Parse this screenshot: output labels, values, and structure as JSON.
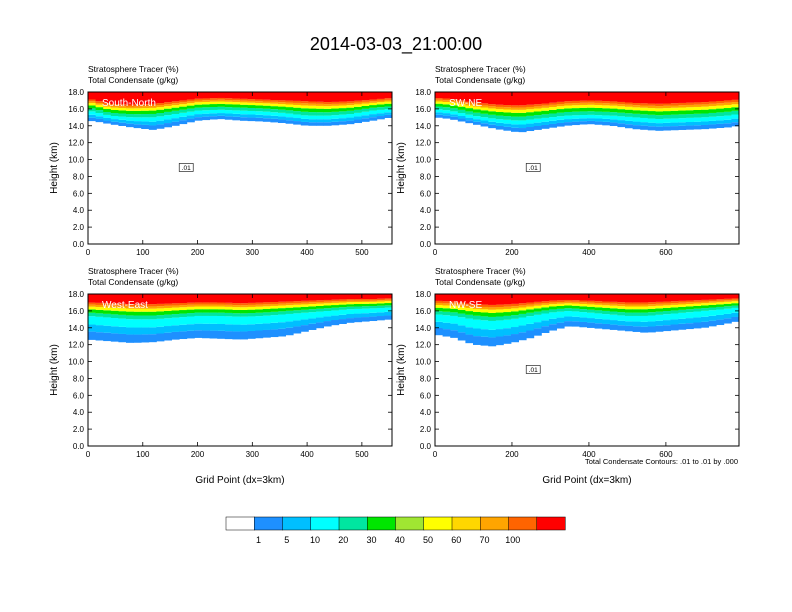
{
  "figure": {
    "title": "2014-03-03_21:00:00",
    "colorbar": {
      "labels": [
        "1",
        "5",
        "10",
        "20",
        "30",
        "40",
        "50",
        "60",
        "70",
        "100"
      ],
      "colors": [
        "#ffffff",
        "#1e90ff",
        "#00bfff",
        "#00ffff",
        "#00e6a0",
        "#00e600",
        "#a0e632",
        "#ffff00",
        "#ffd700",
        "#ffa500",
        "#ff6400",
        "#ff0000"
      ]
    },
    "contour_note": "Total Condensate Contours: .01 to .01 by .000",
    "ticks": {
      "y": [
        "0.0",
        "2.0",
        "4.0",
        "6.0",
        "8.0",
        "10.0",
        "12.0",
        "14.0",
        "16.0",
        "18.0"
      ]
    },
    "subtitle1": "Stratosphere Tracer   (%)",
    "subtitle2": "Total Condensate   (g/kg)"
  },
  "chart_data": [
    {
      "type": "heatmap",
      "panel": "South-North",
      "title": "Stratosphere Tracer (%) / Total Condensate (g/kg)",
      "ylabel": "Height (km)",
      "xlabel": "",
      "xlim": [
        0,
        555
      ],
      "ylim": [
        0,
        18
      ],
      "xticks": [
        "0",
        "100",
        "200",
        "300",
        "400",
        "500"
      ],
      "xtick_values": [
        0,
        100,
        200,
        300,
        400,
        500
      ],
      "contour_label": ".01",
      "profile": {
        "x": [
          0,
          15,
          40,
          80,
          120,
          160,
          200,
          240,
          280,
          320,
          360,
          400,
          440,
          480,
          520,
          555
        ],
        "bottom": [
          14.6,
          14.5,
          14.2,
          13.8,
          13.5,
          14.0,
          14.6,
          14.8,
          14.6,
          14.5,
          14.3,
          14.0,
          14.0,
          14.2,
          14.6,
          15.0
        ],
        "low": [
          15.8,
          15.6,
          15.2,
          15.0,
          15.0,
          15.4,
          15.8,
          15.9,
          15.8,
          15.7,
          15.5,
          15.2,
          15.2,
          15.4,
          15.8,
          16.0
        ],
        "top": [
          17.2,
          17.0,
          16.6,
          16.5,
          16.6,
          16.9,
          17.2,
          17.3,
          17.2,
          17.1,
          17.0,
          16.9,
          16.8,
          16.9,
          17.1,
          17.3
        ]
      }
    },
    {
      "type": "heatmap",
      "panel": "SW-NE",
      "title": "Stratosphere Tracer (%) / Total Condensate (g/kg)",
      "ylabel": "Height (km)",
      "xlabel": "",
      "xlim": [
        0,
        790
      ],
      "ylim": [
        0,
        18
      ],
      "xticks": [
        "0",
        "200",
        "400",
        "600"
      ],
      "xtick_values": [
        0,
        200,
        400,
        600
      ],
      "contour_label": ".01",
      "profile": {
        "x": [
          0,
          40,
          100,
          160,
          220,
          280,
          340,
          400,
          460,
          520,
          580,
          640,
          700,
          760,
          790
        ],
        "bottom": [
          15.0,
          14.8,
          14.2,
          13.6,
          13.2,
          13.6,
          14.0,
          14.2,
          14.0,
          13.6,
          13.4,
          13.5,
          13.6,
          13.8,
          14.0
        ],
        "low": [
          16.0,
          15.8,
          15.2,
          14.8,
          14.6,
          14.9,
          15.2,
          15.3,
          15.2,
          15.0,
          14.8,
          14.9,
          15.0,
          15.2,
          15.4
        ],
        "top": [
          17.3,
          17.2,
          16.8,
          16.5,
          16.4,
          16.6,
          16.9,
          17.0,
          16.9,
          16.7,
          16.6,
          16.7,
          16.8,
          17.0,
          17.1
        ]
      }
    },
    {
      "type": "heatmap",
      "panel": "West-East",
      "title": "Stratosphere Tracer (%) / Total Condensate (g/kg)",
      "ylabel": "Height (km)",
      "xlabel": "Grid Point (dx=3km)",
      "xlim": [
        0,
        555
      ],
      "ylim": [
        0,
        18
      ],
      "xticks": [
        "0",
        "100",
        "200",
        "300",
        "400",
        "500"
      ],
      "xtick_values": [
        0,
        100,
        200,
        300,
        400,
        500
      ],
      "contour_label": "",
      "profile": {
        "x": [
          0,
          40,
          80,
          120,
          160,
          200,
          240,
          280,
          320,
          360,
          400,
          440,
          480,
          520,
          555
        ],
        "bottom": [
          12.6,
          12.4,
          12.2,
          12.3,
          12.6,
          12.8,
          12.7,
          12.6,
          12.8,
          13.0,
          13.6,
          14.2,
          14.6,
          14.8,
          15.0
        ],
        "low": [
          15.4,
          15.2,
          15.0,
          15.0,
          15.2,
          15.4,
          15.4,
          15.3,
          15.4,
          15.6,
          15.8,
          16.0,
          16.2,
          16.3,
          16.4
        ],
        "top": [
          17.0,
          16.9,
          16.8,
          16.8,
          16.9,
          17.0,
          17.0,
          16.9,
          17.0,
          17.1,
          17.2,
          17.3,
          17.4,
          17.4,
          17.5
        ]
      }
    },
    {
      "type": "heatmap",
      "panel": "NW-SE",
      "title": "Stratosphere Tracer (%) / Total Condensate (g/kg)",
      "ylabel": "Height (km)",
      "xlabel": "Grid Point (dx=3km)",
      "xlim": [
        0,
        790
      ],
      "ylim": [
        0,
        18
      ],
      "xticks": [
        "0",
        "200",
        "400",
        "600"
      ],
      "xtick_values": [
        0,
        200,
        400,
        600
      ],
      "contour_label": ".01",
      "profile": {
        "x": [
          0,
          50,
          100,
          150,
          200,
          250,
          300,
          350,
          400,
          450,
          500,
          550,
          600,
          650,
          700,
          750,
          790
        ],
        "bottom": [
          13.2,
          12.8,
          12.0,
          11.8,
          12.2,
          12.8,
          13.6,
          14.2,
          14.0,
          13.8,
          13.6,
          13.4,
          13.6,
          13.8,
          14.0,
          14.4,
          14.8
        ],
        "low": [
          15.6,
          15.4,
          15.0,
          14.8,
          15.0,
          15.4,
          15.8,
          16.0,
          15.8,
          15.6,
          15.4,
          15.4,
          15.6,
          15.8,
          16.0,
          16.2,
          16.4
        ],
        "top": [
          17.2,
          17.1,
          16.8,
          16.7,
          16.8,
          17.0,
          17.2,
          17.3,
          17.2,
          17.1,
          17.0,
          17.0,
          17.1,
          17.2,
          17.3,
          17.4,
          17.5
        ]
      }
    }
  ]
}
